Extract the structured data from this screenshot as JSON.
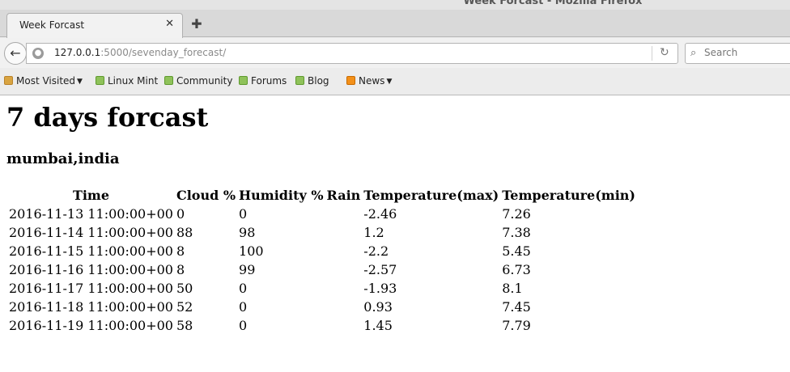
{
  "window": {
    "title": "Week Forcast - Mozilla Firefox"
  },
  "tab": {
    "label": "Week Forcast",
    "close_icon": "close-icon",
    "new_tab_icon": "plus-icon"
  },
  "navbar": {
    "url_host": "127.0.0.1",
    "url_path": ":5000/sevenday_forecast/",
    "search_placeholder": "Search"
  },
  "bookmarks": [
    {
      "label": "Most Visited",
      "icon": "folder-icon",
      "dropdown": true
    },
    {
      "label": "Linux Mint",
      "icon": "mint-icon"
    },
    {
      "label": "Community",
      "icon": "mint-icon"
    },
    {
      "label": "Forums",
      "icon": "mint-icon"
    },
    {
      "label": "Blog",
      "icon": "mint-icon"
    },
    {
      "label": "News",
      "icon": "rss-icon",
      "dropdown": true
    }
  ],
  "page": {
    "title": "7 days forcast",
    "city": "mumbai,india",
    "columns": [
      "Time",
      "Cloud %",
      "Humidity %",
      "Rain",
      "Temperature(max)",
      "Temperature(min)"
    ],
    "rows": [
      {
        "time": "2016-11-13 11:00:00+00",
        "cloud": "0",
        "humidity": "0",
        "rain": "",
        "tmax": "-2.46",
        "tmin": "7.26"
      },
      {
        "time": "2016-11-14 11:00:00+00",
        "cloud": "88",
        "humidity": "98",
        "rain": "",
        "tmax": "1.2",
        "tmin": "7.38"
      },
      {
        "time": "2016-11-15 11:00:00+00",
        "cloud": "8",
        "humidity": "100",
        "rain": "",
        "tmax": "-2.2",
        "tmin": "5.45"
      },
      {
        "time": "2016-11-16 11:00:00+00",
        "cloud": "8",
        "humidity": "99",
        "rain": "",
        "tmax": "-2.57",
        "tmin": "6.73"
      },
      {
        "time": "2016-11-17 11:00:00+00",
        "cloud": "50",
        "humidity": "0",
        "rain": "",
        "tmax": "-1.93",
        "tmin": "8.1"
      },
      {
        "time": "2016-11-18 11:00:00+00",
        "cloud": "52",
        "humidity": "0",
        "rain": "",
        "tmax": "0.93",
        "tmin": "7.45"
      },
      {
        "time": "2016-11-19 11:00:00+00",
        "cloud": "58",
        "humidity": "0",
        "rain": "",
        "tmax": "1.45",
        "tmin": "7.79"
      }
    ]
  }
}
